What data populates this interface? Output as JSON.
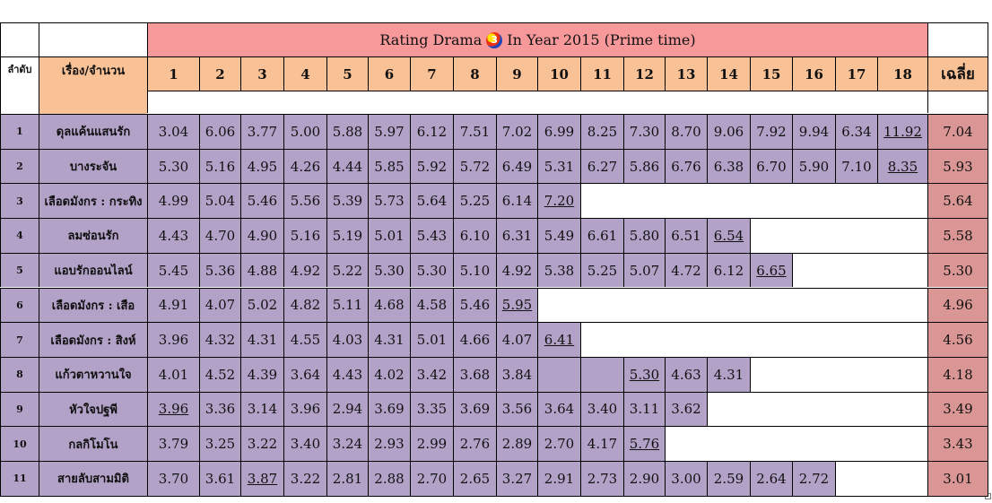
{
  "title": {
    "before_logo": "Rating Drama",
    "logo_text": "3",
    "after_logo": "In Year 2015 (Prime time)"
  },
  "headers": {
    "rank": "ลำดับ",
    "name": "เรื่อง/จำนวน",
    "average": "เฉลี่ย",
    "episodes": [
      "1",
      "2",
      "3",
      "4",
      "5",
      "6",
      "7",
      "8",
      "9",
      "10",
      "11",
      "12",
      "13",
      "14",
      "15",
      "16",
      "17",
      "18"
    ]
  },
  "rows": [
    {
      "rank": "1",
      "name": "ดุลแค้นแสนรัก",
      "values": [
        "3.04",
        "6.06",
        "3.77",
        "5.00",
        "5.88",
        "5.97",
        "6.12",
        "7.51",
        "7.02",
        "6.99",
        "8.25",
        "7.30",
        "8.70",
        "9.06",
        "7.92",
        "9.94",
        "6.34",
        "11.92"
      ],
      "underline": [
        17
      ],
      "average": "7.04"
    },
    {
      "rank": "2",
      "name": "บางระจัน",
      "values": [
        "5.30",
        "5.16",
        "4.95",
        "4.26",
        "4.44",
        "5.85",
        "5.92",
        "5.72",
        "6.49",
        "5.31",
        "6.27",
        "5.86",
        "6.76",
        "6.38",
        "6.70",
        "5.90",
        "7.10",
        "8.35"
      ],
      "underline": [
        17
      ],
      "average": "5.93"
    },
    {
      "rank": "3",
      "name": "เลือดมังกร : กระทิง",
      "values": [
        "4.99",
        "5.04",
        "5.46",
        "5.56",
        "5.39",
        "5.73",
        "5.64",
        "5.25",
        "6.14",
        "7.20"
      ],
      "underline": [
        9
      ],
      "average": "5.64"
    },
    {
      "rank": "4",
      "name": "ลมซ่อนรัก",
      "values": [
        "4.43",
        "4.70",
        "4.90",
        "5.16",
        "5.19",
        "5.01",
        "5.43",
        "6.10",
        "6.31",
        "5.49",
        "6.61",
        "5.80",
        "6.51",
        "6.54"
      ],
      "underline": [
        13
      ],
      "average": "5.58"
    },
    {
      "rank": "5",
      "name": "แอบรักออนไลน์",
      "values": [
        "5.45",
        "5.36",
        "4.88",
        "4.92",
        "5.22",
        "5.30",
        "5.30",
        "5.10",
        "4.92",
        "5.38",
        "5.25",
        "5.07",
        "4.72",
        "6.12",
        "6.65"
      ],
      "underline": [
        14
      ],
      "average": "5.30"
    },
    {
      "rank": "6",
      "name": "เลือดมังกร : เสือ",
      "values": [
        "4.91",
        "4.07",
        "5.02",
        "4.82",
        "5.11",
        "4.68",
        "4.58",
        "5.46",
        "5.95"
      ],
      "underline": [
        8
      ],
      "average": "4.96"
    },
    {
      "rank": "7",
      "name": "เลือดมังกร : สิงห์",
      "values": [
        "3.96",
        "4.32",
        "4.31",
        "4.55",
        "4.03",
        "4.31",
        "5.01",
        "4.66",
        "4.07",
        "6.41"
      ],
      "underline": [
        9
      ],
      "average": "4.56"
    },
    {
      "rank": "8",
      "name": "แก้วตาหวานใจ",
      "values": [
        "4.01",
        "4.52",
        "4.39",
        "3.64",
        "4.43",
        "4.02",
        "3.42",
        "3.68",
        "3.84",
        "",
        "",
        "5.30",
        "4.63",
        "4.31"
      ],
      "underline": [
        11
      ],
      "average": "4.18"
    },
    {
      "rank": "9",
      "name": "หัวใจปฐพี",
      "values": [
        "3.96",
        "3.36",
        "3.14",
        "3.96",
        "2.94",
        "3.69",
        "3.35",
        "3.69",
        "3.56",
        "3.64",
        "3.40",
        "3.11",
        "3.62"
      ],
      "underline": [
        0
      ],
      "average": "3.49"
    },
    {
      "rank": "10",
      "name": "กลกิโมโน",
      "values": [
        "3.79",
        "3.25",
        "3.22",
        "3.40",
        "3.24",
        "2.93",
        "2.99",
        "2.76",
        "2.89",
        "2.70",
        "4.17",
        "5.76"
      ],
      "underline": [
        11
      ],
      "average": "3.43"
    },
    {
      "rank": "11",
      "name": "สายลับสามมิติ",
      "values": [
        "3.70",
        "3.61",
        "3.87",
        "3.22",
        "2.81",
        "2.88",
        "2.70",
        "2.65",
        "3.27",
        "2.91",
        "2.73",
        "2.90",
        "3.00",
        "2.59",
        "2.64",
        "2.72"
      ],
      "underline": [
        2
      ],
      "average": "3.01"
    }
  ],
  "colors": {
    "title_band": "#f7999b",
    "header": "#f9c196",
    "row_cells": "#b3a2c8",
    "average_column": "#d99694"
  }
}
